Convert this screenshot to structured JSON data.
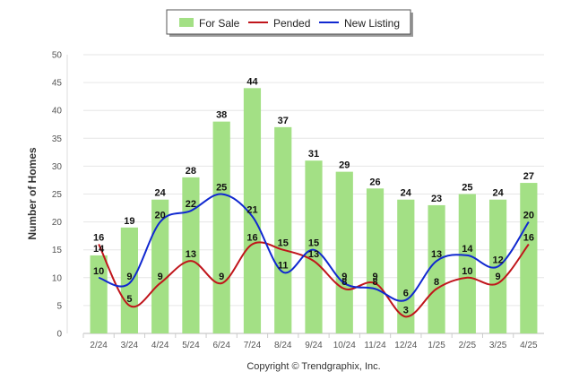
{
  "chart_data": {
    "type": "bar",
    "categories": [
      "2/24",
      "3/24",
      "4/24",
      "5/24",
      "6/24",
      "7/24",
      "8/24",
      "9/24",
      "10/24",
      "11/24",
      "12/24",
      "1/25",
      "2/25",
      "3/25",
      "4/25"
    ],
    "series": [
      {
        "name": "For Sale",
        "kind": "bar",
        "color": "#a3e085",
        "values": [
          14,
          19,
          24,
          28,
          38,
          44,
          37,
          31,
          29,
          26,
          24,
          23,
          25,
          24,
          27
        ]
      },
      {
        "name": "Pended",
        "kind": "line",
        "color": "#c0151b",
        "values": [
          16,
          5,
          9,
          13,
          9,
          16,
          15,
          13,
          8,
          9,
          3,
          8,
          10,
          9,
          16
        ]
      },
      {
        "name": "New Listing",
        "kind": "line",
        "color": "#1028d0",
        "values": [
          10,
          9,
          20,
          22,
          25,
          21,
          11,
          15,
          9,
          8,
          6,
          13,
          14,
          12,
          20
        ]
      }
    ],
    "ylabel": "Number of Homes",
    "ylim": [
      0,
      50
    ],
    "yticks": [
      0,
      5,
      10,
      15,
      20,
      25,
      30,
      35,
      40,
      45,
      50
    ],
    "grid": true,
    "legend": "top-center"
  },
  "legend": {
    "items": [
      {
        "label": "For Sale",
        "color": "#a3e085"
      },
      {
        "label": "Pended",
        "color": "#c0151b"
      },
      {
        "label": "New Listing",
        "color": "#1028d0"
      }
    ]
  },
  "footer": {
    "copyright": "Copyright © Trendgraphix, Inc."
  }
}
